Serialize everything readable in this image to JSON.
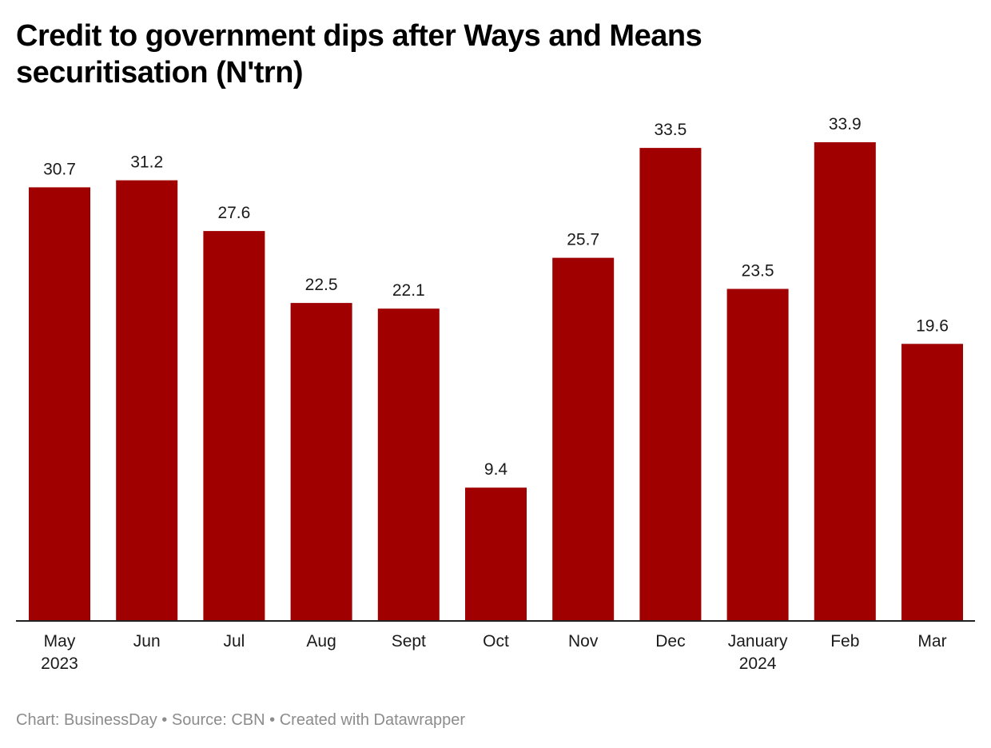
{
  "chart_data": {
    "type": "bar",
    "title": "Credit to government dips after Ways and Means securitisation (N'trn)",
    "xlabel": "",
    "ylabel": "",
    "categories": [
      "May 2023",
      "Jun",
      "Jul",
      "Aug",
      "Sept",
      "Oct",
      "Nov",
      "Dec",
      "January 2024",
      "Feb",
      "Mar"
    ],
    "category_lines": [
      [
        "May",
        "2023"
      ],
      [
        "Jun"
      ],
      [
        "Jul"
      ],
      [
        "Aug"
      ],
      [
        "Sept"
      ],
      [
        "Oct"
      ],
      [
        "Nov"
      ],
      [
        "Dec"
      ],
      [
        "January",
        "2024"
      ],
      [
        "Feb"
      ],
      [
        "Mar"
      ]
    ],
    "values": [
      30.7,
      31.2,
      27.6,
      22.5,
      22.1,
      9.4,
      25.7,
      33.5,
      23.5,
      33.9,
      19.6
    ],
    "data_labels": [
      "30.7",
      "31.2",
      "27.6",
      "22.5",
      "22.1",
      "9.4",
      "25.7",
      "33.5",
      "23.5",
      "33.9",
      "19.6"
    ],
    "ylim": [
      0,
      33.9
    ],
    "grid": false,
    "legend": "none",
    "bar_color": "#a00000"
  },
  "footer": {
    "chart_credit": "Chart: BusinessDay",
    "separator": " • ",
    "source": "Source: CBN",
    "created_with": "Created with Datawrapper"
  }
}
